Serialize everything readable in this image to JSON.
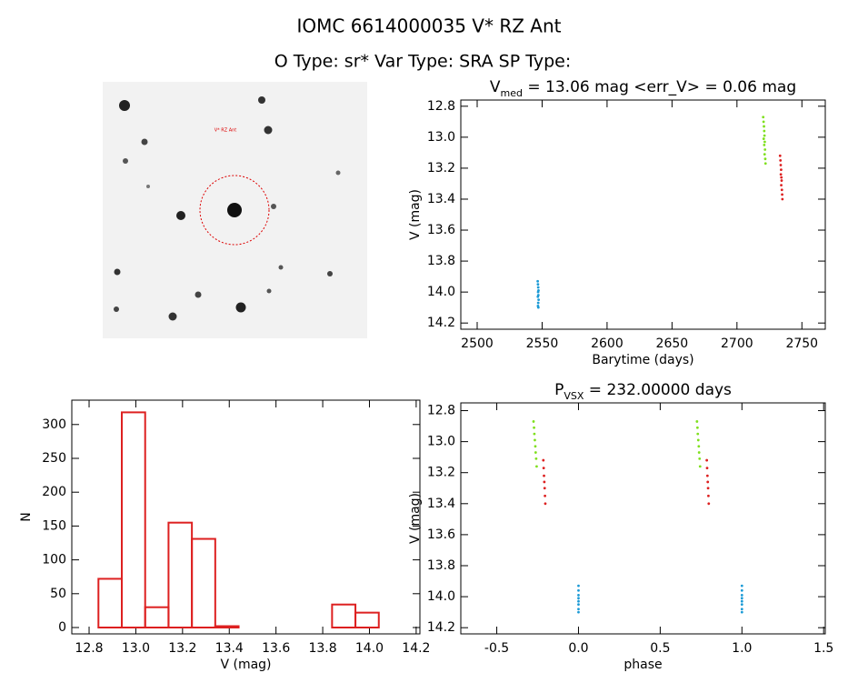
{
  "header": {
    "title": "IOMC 6614000035    V* RZ Ant",
    "subtitle": "O Type: sr*   Var Type: SRA   SP Type:"
  },
  "image": {
    "label": "V* RZ Ant"
  },
  "chart_data": [
    {
      "type": "scatter",
      "title": [
        "V",
        "med",
        " = 13.06 mag <err_V> = 0.06 mag"
      ],
      "xlabel": "Barytime (days)",
      "ylabel": "V (mag)",
      "xlim": [
        2487.4,
        2768
      ],
      "xticks": [
        2500,
        2550,
        2600,
        2650,
        2700,
        2750
      ],
      "ylim": [
        14.24,
        12.76
      ],
      "yticks": [
        12.8,
        {
          "value": 13,
          "label": "13.0"
        },
        13.2,
        13.4,
        13.6,
        13.8,
        {
          "value": 14,
          "label": "14.0"
        },
        14.2
      ],
      "series": [
        {
          "color": "#1a9ad6",
          "x": [
            2546.6,
            2546.8,
            2547,
            2547.2,
            2546.9,
            2547.1,
            2546.7,
            2547.3,
            2547,
            2546.8,
            2547.1
          ],
          "values": [
            13.93,
            13.95,
            13.97,
            13.99,
            14.0,
            14.02,
            14.03,
            14.05,
            14.07,
            14.09,
            14.1
          ]
        },
        {
          "color": "#7fe01e",
          "x": [
            2720.2,
            2720.5,
            2720.8,
            2721,
            2721.2,
            2720.6,
            2721.4,
            2721,
            2721.6,
            2721.3,
            2721.8,
            2722
          ],
          "values": [
            12.87,
            12.9,
            12.93,
            12.96,
            12.99,
            13.01,
            13.03,
            13.05,
            13.08,
            13.11,
            13.14,
            13.17
          ]
        },
        {
          "color": "#dd2020",
          "x": [
            2733.2,
            2733.5,
            2733.7,
            2734,
            2733.8,
            2734.2,
            2734.4,
            2734.1,
            2734.6,
            2734.8,
            2735
          ],
          "values": [
            13.12,
            13.15,
            13.18,
            13.21,
            13.24,
            13.26,
            13.28,
            13.31,
            13.34,
            13.37,
            13.4
          ]
        }
      ]
    },
    {
      "type": "histogram",
      "xlabel": "V (mag)",
      "ylabel": "N",
      "color": "#dd2020",
      "bins": [
        12.84,
        12.94,
        13.04,
        13.14,
        13.24,
        13.34,
        13.44,
        13.54,
        13.64,
        13.74,
        13.84,
        13.94,
        14.04
      ],
      "values": [
        72,
        318,
        30,
        155,
        131,
        2,
        0,
        0,
        0,
        0,
        34,
        22,
        0
      ],
      "xlim": [
        12.726,
        14.216
      ],
      "xticks": [
        12.8,
        {
          "value": 13,
          "label": "13.0"
        },
        13.2,
        13.4,
        13.6,
        13.8,
        {
          "value": 14,
          "label": "14.0"
        },
        14.2
      ],
      "ylim": [
        -9.4,
        336
      ],
      "yticks": [
        0,
        50,
        100,
        150,
        200,
        250,
        300
      ]
    },
    {
      "type": "scatter",
      "title": [
        "P",
        "VSX",
        " = 232.00000 days"
      ],
      "xlabel": "phase",
      "ylabel": "V (mag)",
      "xlim": [
        -0.72,
        1.51
      ],
      "xticks": [
        -0.5,
        {
          "value": 0,
          "label": "0.0"
        },
        0.5,
        {
          "value": 1,
          "label": "1.0"
        },
        1.5
      ],
      "ylim": [
        14.24,
        12.75
      ],
      "yticks": [
        12.8,
        {
          "value": 13,
          "label": "13.0"
        },
        13.2,
        13.4,
        13.6,
        13.8,
        {
          "value": 14,
          "label": "14.0"
        },
        14.2
      ],
      "series": [
        {
          "color": "#1a9ad6",
          "x": [
            0,
            0,
            0,
            0,
            0,
            0,
            0,
            0,
            1,
            1,
            1,
            1,
            1,
            1,
            1,
            1
          ],
          "values": [
            13.93,
            13.96,
            13.99,
            14.01,
            14.03,
            14.05,
            14.08,
            14.1,
            13.93,
            13.96,
            13.99,
            14.01,
            14.03,
            14.05,
            14.08,
            14.1
          ]
        },
        {
          "color": "#7fe01e",
          "x": [
            -0.275,
            -0.272,
            -0.27,
            -0.267,
            -0.264,
            -0.262,
            -0.259,
            -0.256,
            0.725,
            0.728,
            0.73,
            0.733,
            0.736,
            0.738,
            0.741,
            0.744
          ],
          "values": [
            12.87,
            12.91,
            12.95,
            12.99,
            13.03,
            13.07,
            13.11,
            13.16,
            12.87,
            12.91,
            12.95,
            12.99,
            13.03,
            13.07,
            13.11,
            13.16
          ]
        },
        {
          "color": "#dd2020",
          "x": [
            -0.215,
            -0.213,
            -0.211,
            -0.209,
            -0.207,
            -0.205,
            -0.203,
            0.785,
            0.787,
            0.789,
            0.791,
            0.793,
            0.795,
            0.797
          ],
          "values": [
            13.12,
            13.17,
            13.22,
            13.26,
            13.3,
            13.35,
            13.4,
            13.12,
            13.17,
            13.22,
            13.26,
            13.3,
            13.35,
            13.4
          ]
        }
      ]
    }
  ]
}
